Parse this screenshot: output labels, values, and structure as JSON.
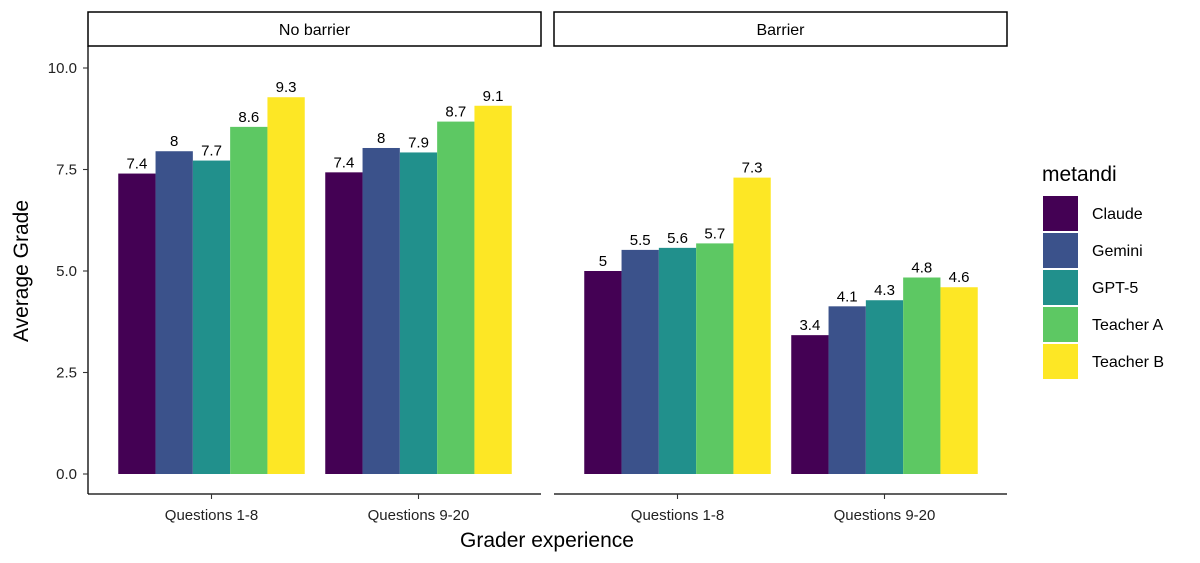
{
  "chart_data": {
    "type": "bar",
    "xlabel": "Grader experience",
    "ylabel": "Average Grade",
    "ylim": [
      0,
      10.5
    ],
    "yticks": [
      "0.0",
      "2.5",
      "5.0",
      "7.5",
      "10.0"
    ],
    "grid": false,
    "legend": {
      "title": "metandi",
      "position": "right"
    },
    "series_names": [
      "Claude",
      "Gemini",
      "GPT-5",
      "Teacher A",
      "Teacher B"
    ],
    "colors": [
      "#440154",
      "#3B528B",
      "#21908C",
      "#5DC863",
      "#FDE725"
    ],
    "categories": [
      "Questions 1-8",
      "Questions 9-20"
    ],
    "panels": [
      {
        "title": "No barrier",
        "groups": [
          {
            "category": "Questions 1-8",
            "values": [
              7.4,
              7.95,
              7.72,
              8.55,
              9.28
            ],
            "labels": [
              "7.4",
              "8",
              "7.7",
              "8.6",
              "9.3"
            ]
          },
          {
            "category": "Questions 9-20",
            "values": [
              7.43,
              8.03,
              7.92,
              8.68,
              9.07
            ],
            "labels": [
              "7.4",
              "8",
              "7.9",
              "8.7",
              "9.1"
            ]
          }
        ]
      },
      {
        "title": "Barrier",
        "groups": [
          {
            "category": "Questions 1-8",
            "values": [
              5.0,
              5.52,
              5.57,
              5.68,
              7.3
            ],
            "labels": [
              "5",
              "5.5",
              "5.6",
              "5.7",
              "7.3"
            ]
          },
          {
            "category": "Questions 9-20",
            "values": [
              3.42,
              4.13,
              4.28,
              4.84,
              4.6
            ],
            "labels": [
              "3.4",
              "4.1",
              "4.3",
              "4.8",
              "4.6"
            ]
          }
        ]
      }
    ]
  }
}
